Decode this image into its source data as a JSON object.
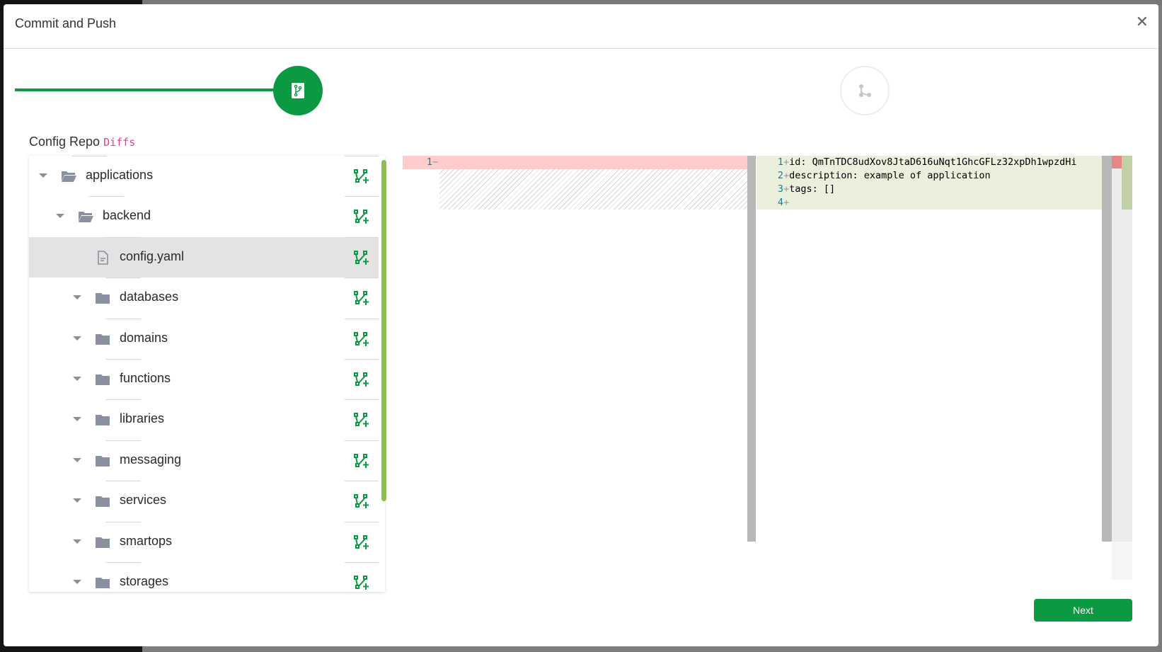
{
  "dialog": {
    "title": "Commit and Push",
    "close_icon": "close-icon"
  },
  "stepper": {
    "current_step": 1,
    "total_steps": 2,
    "progress_percent": 50,
    "steps": [
      {
        "icon": "git-branch-icon",
        "state": "active"
      },
      {
        "icon": "git-merge-icon",
        "state": "pending"
      }
    ]
  },
  "section": {
    "title": "Config Repo",
    "highlight": "Diffs"
  },
  "tree": {
    "items": [
      {
        "label": "applications",
        "type": "folder-open",
        "depth": 0,
        "expanded": true
      },
      {
        "label": "backend",
        "type": "folder-open",
        "depth": 1,
        "expanded": true
      },
      {
        "label": "config.yaml",
        "type": "file",
        "depth": 2,
        "selected": true
      },
      {
        "label": "databases",
        "type": "folder",
        "depth": 2
      },
      {
        "label": "domains",
        "type": "folder",
        "depth": 2
      },
      {
        "label": "functions",
        "type": "folder",
        "depth": 2
      },
      {
        "label": "libraries",
        "type": "folder",
        "depth": 2
      },
      {
        "label": "messaging",
        "type": "folder",
        "depth": 2
      },
      {
        "label": "services",
        "type": "folder",
        "depth": 2
      },
      {
        "label": "smartops",
        "type": "folder",
        "depth": 2
      },
      {
        "label": "storages",
        "type": "folder",
        "depth": 2
      }
    ],
    "action_icon": "git-branch-plus-icon"
  },
  "diff": {
    "original": [
      {
        "num": "1",
        "marker": "−",
        "text": ""
      }
    ],
    "modified": [
      {
        "num": "1",
        "marker": "+",
        "text": "id: QmTnTDC8udXov8JtaD616uNqt1GhcGFLz32xpDh1wpzdHi"
      },
      {
        "num": "2",
        "marker": "+",
        "text": "description: example of application"
      },
      {
        "num": "3",
        "marker": "+",
        "text": "tags: []"
      },
      {
        "num": "4",
        "marker": "+",
        "text": ""
      }
    ],
    "colors": {
      "removed": "#ffcccc",
      "added": "#eaf0dc"
    }
  },
  "footer": {
    "next_label": "Next"
  },
  "colors": {
    "accent": "#0b9a42",
    "highlight": "#e83e8c"
  }
}
